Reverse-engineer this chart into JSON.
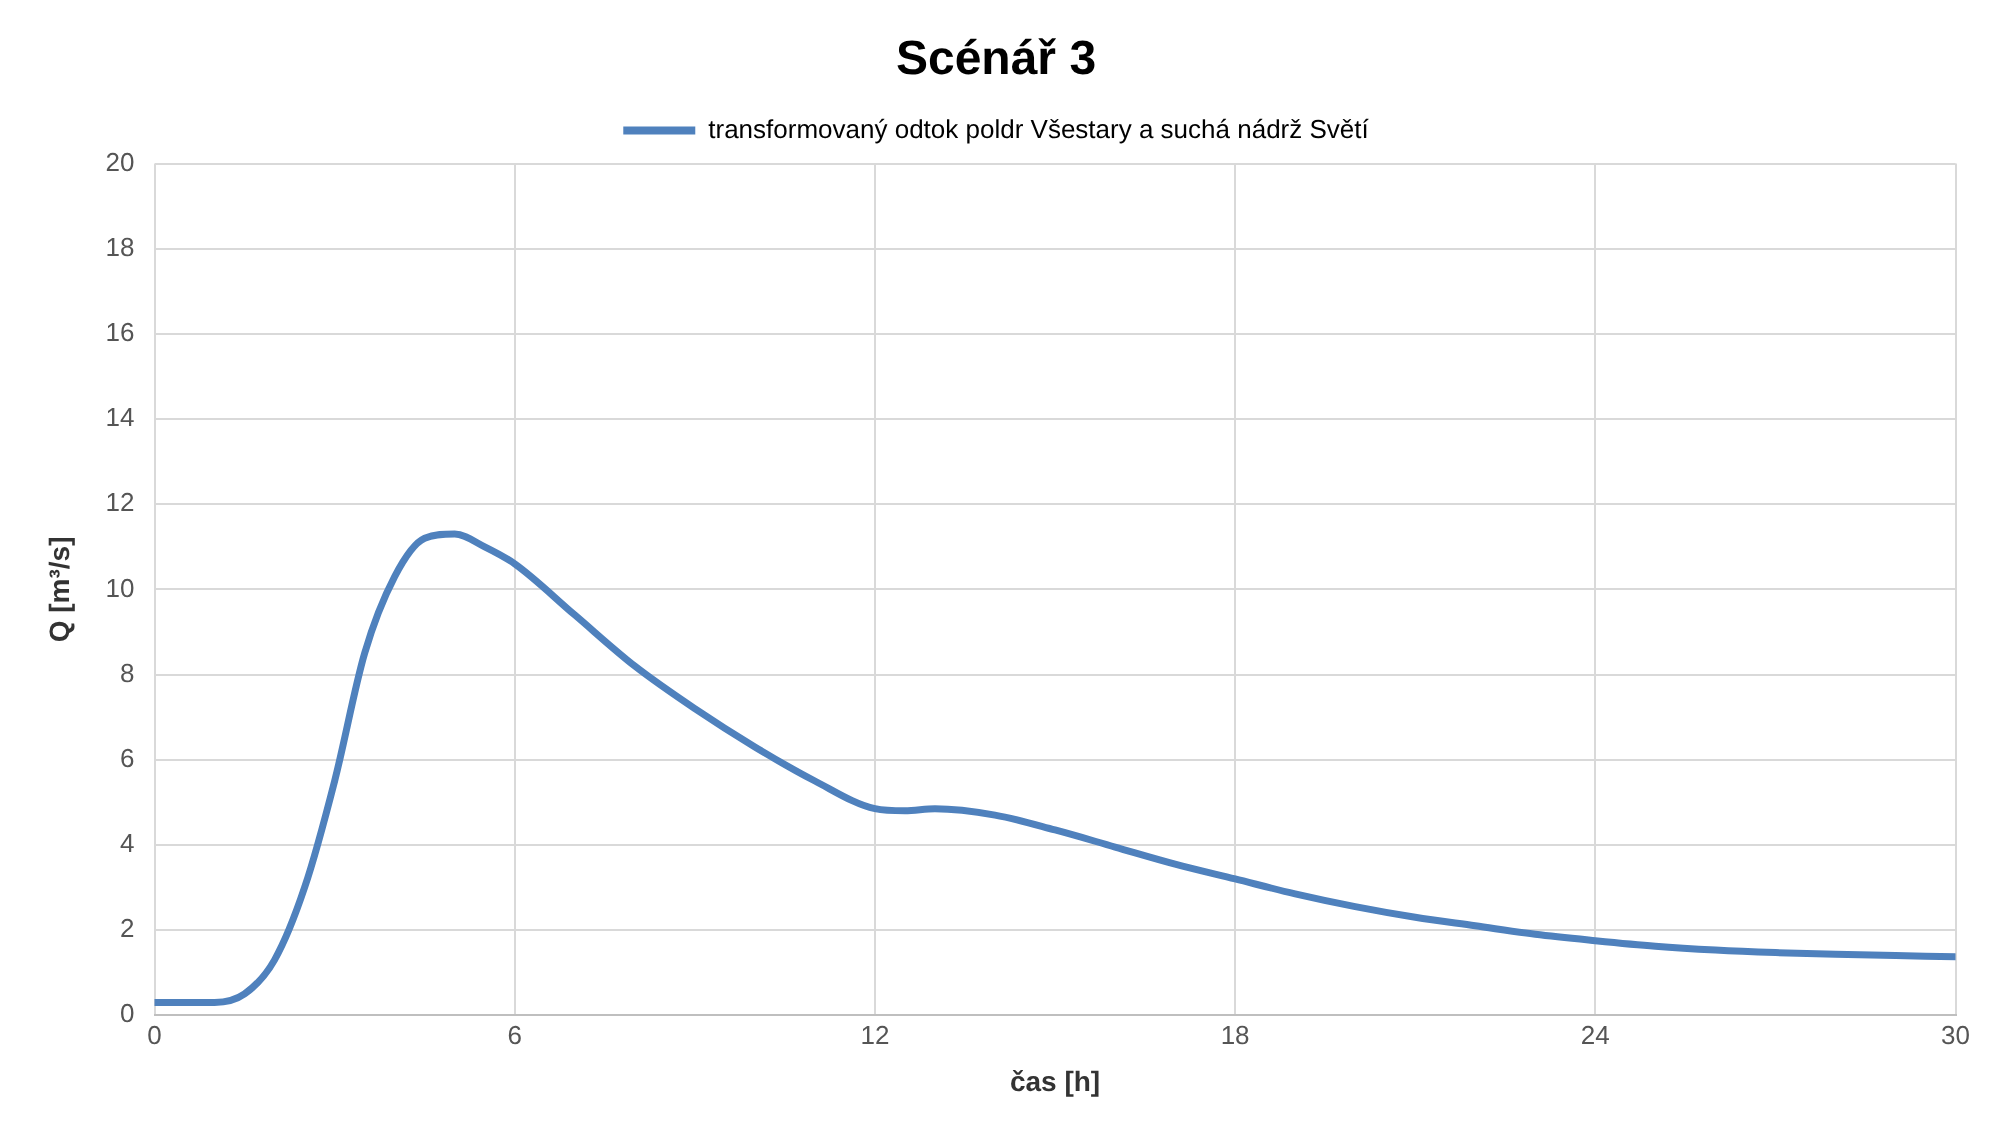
{
  "chart_data": {
    "type": "line",
    "title": "Scénář 3",
    "xlabel": "čas [h]",
    "ylabel": "Q [m³/s]",
    "x": [
      0,
      1,
      1.5,
      2,
      2.5,
      3,
      3.5,
      4,
      4.5,
      5,
      5.5,
      6,
      7,
      8,
      9,
      10,
      11,
      12,
      12.5,
      13,
      14,
      15,
      16,
      17,
      18,
      19,
      20,
      21,
      22,
      23,
      24,
      25,
      26,
      27,
      28,
      29,
      30
    ],
    "series": [
      {
        "name": "transformovaný odtok poldr Všestary a suchá nádrž Světí",
        "color": "#4f81bd",
        "values": [
          0.3,
          0.3,
          0.5,
          1.3,
          3.0,
          5.5,
          8.5,
          10.3,
          11.2,
          11.3,
          11.0,
          10.6,
          9.4,
          8.2,
          7.2,
          6.3,
          5.5,
          4.85,
          4.8,
          4.85,
          4.7,
          4.35,
          3.95,
          3.55,
          3.2,
          2.85,
          2.55,
          2.3,
          2.1,
          1.9,
          1.75,
          1.62,
          1.53,
          1.47,
          1.43,
          1.4,
          1.37
        ]
      }
    ],
    "xlim": [
      0,
      30
    ],
    "xticks": [
      0,
      6,
      12,
      18,
      24,
      30
    ],
    "ylim": [
      0,
      20
    ],
    "yticks": [
      0,
      2,
      4,
      6,
      8,
      10,
      12,
      14,
      16,
      18,
      20
    ],
    "grid": true,
    "legend": "top",
    "marker": "none",
    "line_style": "solid"
  }
}
